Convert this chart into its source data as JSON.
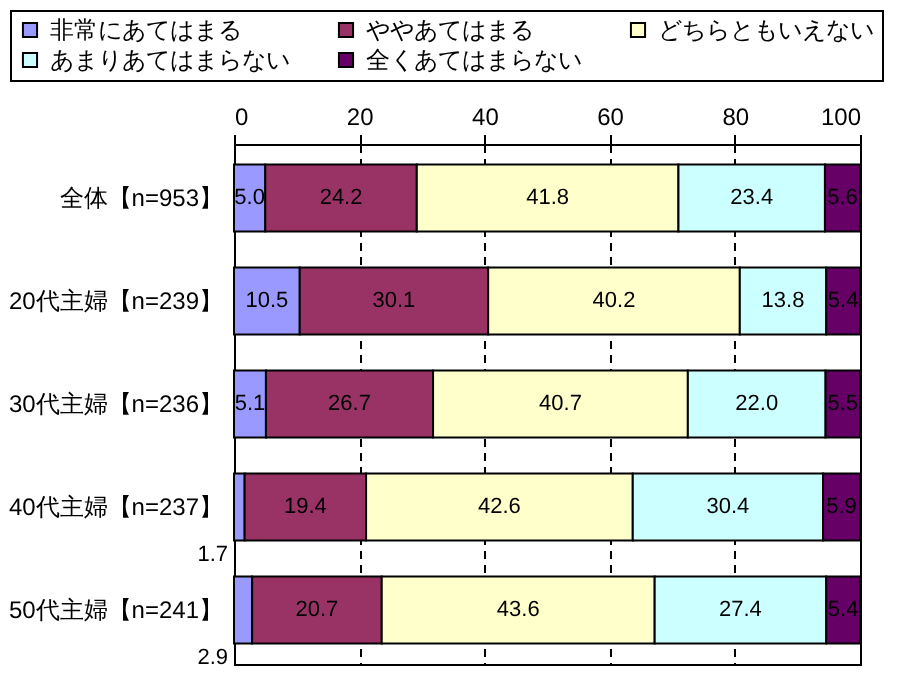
{
  "chart_data": {
    "type": "bar",
    "orientation": "horizontal",
    "stacked": true,
    "grid": "x",
    "legend": "top",
    "categories": [
      "全体【n=953】",
      "20代主婦【n=239】",
      "30代主婦【n=236】",
      "40代主婦【n=237】",
      "50代主婦【n=241】"
    ],
    "series": [
      {
        "name": "非常にあてはまる",
        "color": "#9999ff",
        "values": [
          5.0,
          10.5,
          5.1,
          1.7,
          2.9
        ],
        "value_labels": [
          "5.0",
          "10.5",
          "5.1",
          "1.7",
          "2.9"
        ]
      },
      {
        "name": "ややあてはまる",
        "color": "#993366",
        "values": [
          24.2,
          30.1,
          26.7,
          19.4,
          20.7
        ],
        "value_labels": [
          "24.2",
          "30.1",
          "26.7",
          "19.4",
          "20.7"
        ]
      },
      {
        "name": "どちらともいえない",
        "color": "#ffffcc",
        "values": [
          41.8,
          40.2,
          40.7,
          42.6,
          43.6
        ],
        "value_labels": [
          "41.8",
          "40.2",
          "40.7",
          "42.6",
          "43.6"
        ]
      },
      {
        "name": "あまりあてはまらない",
        "color": "#ccffff",
        "values": [
          23.4,
          13.8,
          22.0,
          30.4,
          27.4
        ],
        "value_labels": [
          "23.4",
          "13.8",
          "22.0",
          "30.4",
          "27.4"
        ]
      },
      {
        "name": "全くあてはまらない",
        "color": "#660066",
        "values": [
          5.6,
          5.4,
          5.5,
          5.9,
          5.4
        ],
        "value_labels": [
          "5.6",
          "5.4",
          "5.5",
          "5.9",
          "5.4"
        ]
      }
    ],
    "xlim": [
      0,
      100
    ],
    "xticks": [
      0,
      20,
      40,
      60,
      80,
      100
    ]
  }
}
